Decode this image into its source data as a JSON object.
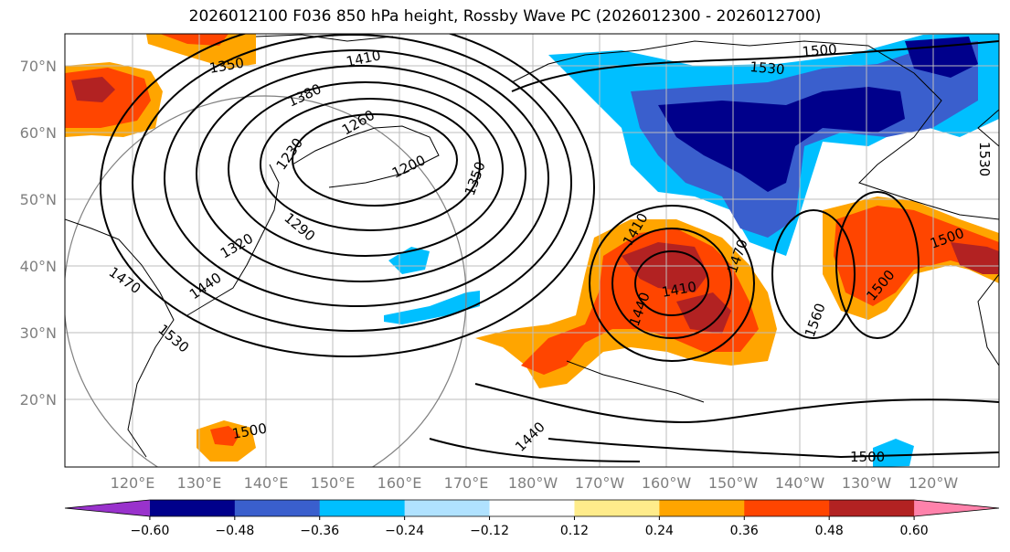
{
  "title": "2026012100 F036 850 hPa height, Rossby Wave PC (2026012300 - 2026012700)",
  "lat_labels": [
    "70°N",
    "60°N",
    "50°N",
    "40°N",
    "30°N",
    "20°N"
  ],
  "lon_labels": [
    "120°E",
    "130°E",
    "140°E",
    "150°E",
    "160°E",
    "170°E",
    "180°W",
    "170°W",
    "160°W",
    "150°W",
    "140°W",
    "130°W",
    "120°W"
  ],
  "contour_labels": [
    "1470",
    "1440",
    "1410",
    "1380",
    "1260",
    "1230",
    "1200",
    "1350",
    "1290",
    "1320",
    "1410",
    "1440",
    "1530",
    "1500",
    "1530",
    "1500",
    "1350",
    "1410",
    "1440",
    "1470",
    "1500",
    "1560",
    "1500",
    "1500",
    "1530",
    "1500",
    "1500",
    "1440"
  ],
  "colorbar": {
    "colors": [
      "#9932cc",
      "#00008b",
      "#3a5fcd",
      "#00bfff",
      "#b0e2ff",
      "#ffffff",
      "#ffec8b",
      "#ffa500",
      "#ff4500",
      "#b22222",
      "#ff82ab"
    ],
    "tick_labels": [
      "−0.60",
      "−0.48",
      "−0.36",
      "−0.24",
      "−0.12",
      "0.12",
      "0.24",
      "0.36",
      "0.48",
      "0.60"
    ]
  }
}
